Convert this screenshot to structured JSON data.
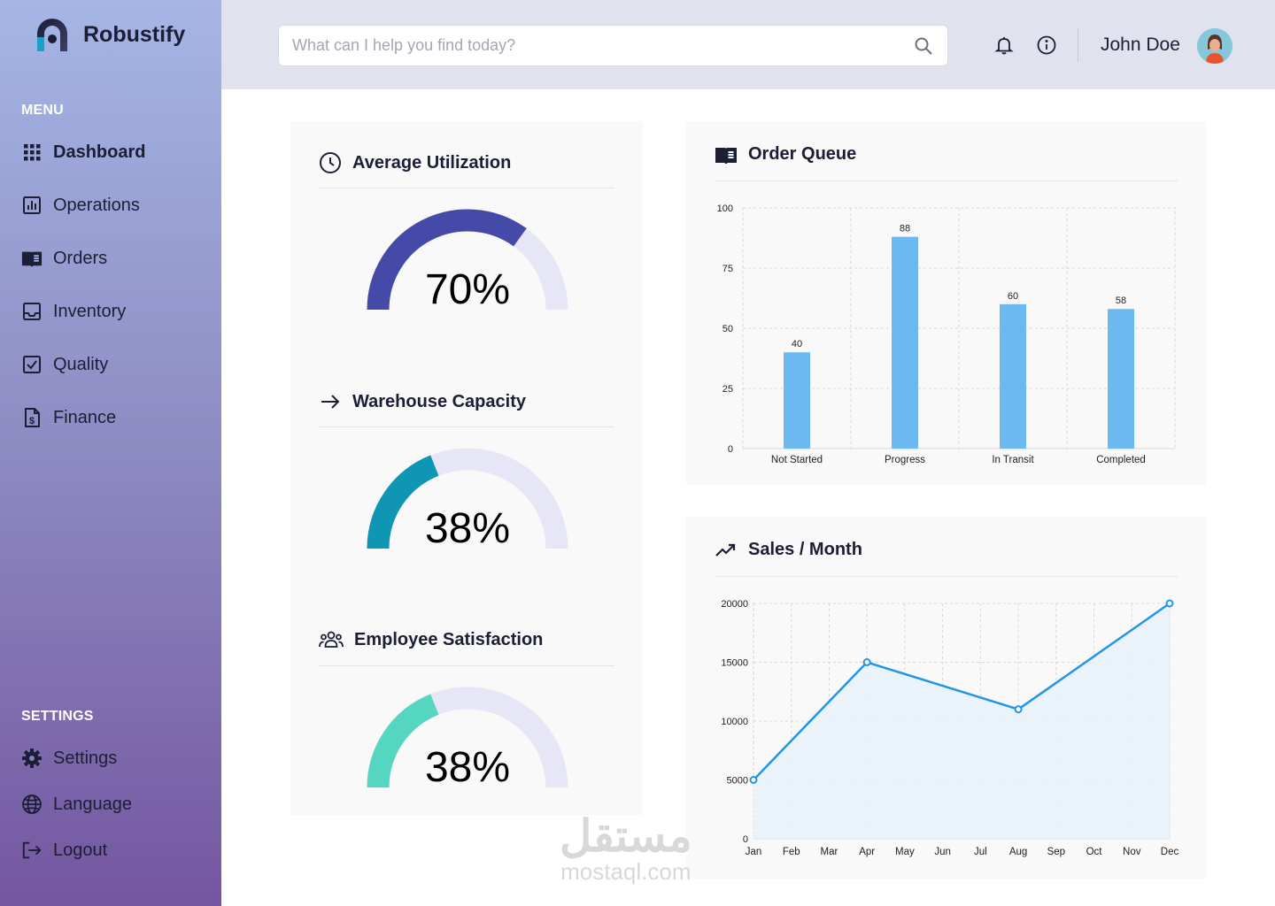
{
  "app": {
    "name": "Robustify"
  },
  "sidebar": {
    "menu_label": "MENU",
    "items": [
      {
        "label": "Dashboard",
        "icon": "grid-icon",
        "active": true
      },
      {
        "label": "Operations",
        "icon": "bar-chart-icon",
        "active": false
      },
      {
        "label": "Orders",
        "icon": "book-icon",
        "active": false
      },
      {
        "label": "Inventory",
        "icon": "inbox-icon",
        "active": false
      },
      {
        "label": "Quality",
        "icon": "checkbox-icon",
        "active": false
      },
      {
        "label": "Finance",
        "icon": "invoice-icon",
        "active": false
      }
    ],
    "settings_label": "SETTINGS",
    "settings_items": [
      {
        "label": "Settings",
        "icon": "gear-icon"
      },
      {
        "label": "Language",
        "icon": "globe-icon"
      },
      {
        "label": "Logout",
        "icon": "logout-icon"
      }
    ]
  },
  "header": {
    "search_placeholder": "What can I help you find today?",
    "user_name": "John Doe"
  },
  "kpis": [
    {
      "title": "Average Utilization",
      "icon": "clock-icon",
      "value": 70,
      "display": "70%",
      "color": "#4549a8"
    },
    {
      "title": "Warehouse Capacity",
      "icon": "arrow-right-icon",
      "value": 38,
      "display": "38%",
      "color": "#0f96b5"
    },
    {
      "title": "Employee Satisfaction",
      "icon": "users-icon",
      "value": 38,
      "display": "38%",
      "color": "#55d6c0"
    }
  ],
  "gauge_track_color": "#e7e6f6",
  "chart_data": [
    {
      "type": "bar",
      "title": "Order Queue",
      "categories": [
        "Not Started",
        "Progress",
        "In Transit",
        "Completed"
      ],
      "values": [
        40,
        88,
        60,
        58
      ],
      "yticks": [
        0,
        25,
        50,
        75,
        100
      ],
      "ylim": [
        0,
        100
      ],
      "color": "#6cb8f0",
      "grid": true
    },
    {
      "type": "area",
      "title": "Sales / Month",
      "categories": [
        "Jan",
        "Feb",
        "Mar",
        "Apr",
        "May",
        "Jun",
        "Jul",
        "Aug",
        "Sep",
        "Oct",
        "Nov",
        "Dec"
      ],
      "points": [
        {
          "x": "Jan",
          "y": 5000
        },
        {
          "x": "Apr",
          "y": 15000
        },
        {
          "x": "Aug",
          "y": 11000
        },
        {
          "x": "Dec",
          "y": 20000
        }
      ],
      "yticks": [
        0,
        5000,
        10000,
        15000,
        20000
      ],
      "ylim": [
        0,
        20000
      ],
      "color": "#2196e8",
      "fill": "#e8f2fa",
      "grid": true
    }
  ],
  "watermark": {
    "arabic": "مستقل",
    "latin": "mostaql.com"
  }
}
